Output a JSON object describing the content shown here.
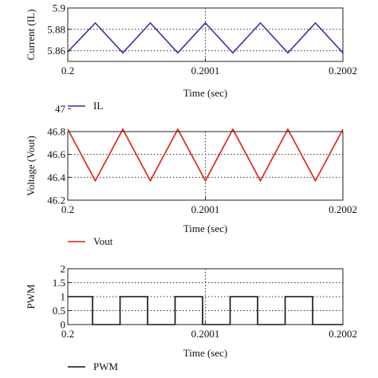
{
  "chart_data": [
    {
      "type": "line",
      "xlabel": "Time (sec)",
      "ylabel": "Current (IL)",
      "xlim": [
        0.2,
        0.2002
      ],
      "ylim": [
        5.85,
        5.9
      ],
      "x_ticks": [
        "0.2",
        "0.2001",
        "0.2002"
      ],
      "y_ticks": [
        "5.86",
        "5.88",
        "5.9"
      ],
      "grid": true,
      "legend_position": "below",
      "color": "#3333aa",
      "series": [
        {
          "name": "IL",
          "x": [
            0.2,
            0.20002,
            0.20004,
            0.20006,
            0.20008,
            0.2001,
            0.20012,
            0.20014,
            0.20016,
            0.20018,
            0.2002
          ],
          "y": [
            5.859,
            5.886,
            5.858,
            5.886,
            5.858,
            5.886,
            5.858,
            5.886,
            5.858,
            5.886,
            5.858
          ]
        }
      ]
    },
    {
      "type": "line",
      "xlabel": "Time (sec)",
      "ylabel": "Voltage (Vout)",
      "xlim": [
        0.2,
        0.2002
      ],
      "ylim": [
        46.2,
        46.8
      ],
      "x_ticks": [
        "0.2",
        "0.2001",
        "0.2002"
      ],
      "y_ticks": [
        "46.2",
        "46.4",
        "46.6",
        "46.8",
        "47"
      ],
      "grid": true,
      "legend_position": "below",
      "color": "#dd2211",
      "series": [
        {
          "name": "Vout",
          "x": [
            0.2,
            0.20002,
            0.20004,
            0.20006,
            0.20008,
            0.2001,
            0.20012,
            0.20014,
            0.20016,
            0.20018,
            0.2002
          ],
          "y": [
            46.82,
            46.37,
            46.82,
            46.37,
            46.82,
            46.37,
            46.82,
            46.37,
            46.82,
            46.37,
            46.82
          ]
        }
      ]
    },
    {
      "type": "line",
      "xlabel": "Time (sec)",
      "ylabel": "PWM",
      "xlim": [
        0.2,
        0.2002
      ],
      "ylim": [
        0,
        2
      ],
      "x_ticks": [
        "0.2",
        "0.2001",
        "0.2002"
      ],
      "y_ticks": [
        "0",
        "0.5",
        "1",
        "1.5",
        "2"
      ],
      "grid": true,
      "legend_position": "below",
      "color": "#111111",
      "series": [
        {
          "name": "PWM",
          "x": [
            0.2,
            0.200018,
            0.200018,
            0.200038,
            0.200038,
            0.200058,
            0.200058,
            0.200078,
            0.200078,
            0.200098,
            0.200098,
            0.200118,
            0.200118,
            0.200138,
            0.200138,
            0.200158,
            0.200158,
            0.200178,
            0.200178,
            0.2002
          ],
          "y": [
            1,
            1,
            0,
            0,
            1,
            1,
            0,
            0,
            1,
            1,
            0,
            0,
            1,
            1,
            0,
            0,
            1,
            1,
            0,
            0
          ]
        }
      ]
    }
  ]
}
